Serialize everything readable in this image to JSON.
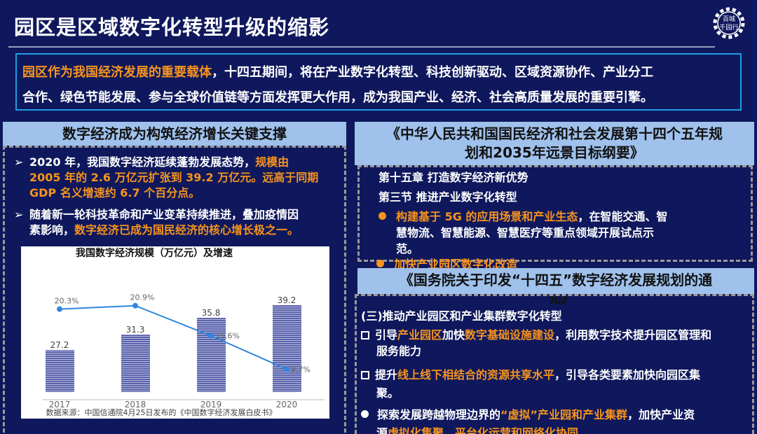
{
  "title": "园区是区域数字化转型升级的缩影",
  "logo": {
    "text1": "百城",
    "text2": "千园行"
  },
  "intro": {
    "highlight": "园区作为我国经济发展的重要载体",
    "line1_rest": "，十四五期间，将在产业数字化转型、科技创新驱动、区域资源协作、产业分工",
    "line2": "合作、绿色节能发展、参与全球价值链等方面发挥更大作用，成为我国产业、经济、社会高质量发展的重要引擎。"
  },
  "left": {
    "header": "数字经济成为构筑经济增长关键支撑",
    "bullet1": {
      "a": " 2020 年，我国数字经济延续蓬勃发展态势，",
      "b": "规模由",
      "c": "2005 年的 2.6 万亿元扩张到 39.2 万亿元。远高于同期",
      "d": "GDP 名义增速约 6.7 个百分点。"
    },
    "bullet2": {
      "a": "随着新一轮科技革命和产业变革持续推进，叠加疫情因",
      "b": "素影响，",
      "c": "数字经济已成为国民经济的核心增长极之一。"
    }
  },
  "chart_data": {
    "type": "bar",
    "title": "我国数字经济规模（万亿元）及增速",
    "categories": [
      "2017",
      "2018",
      "2019",
      "2020"
    ],
    "series": [
      {
        "type": "bar",
        "values": [
          27.2,
          31.3,
          35.8,
          39.2
        ],
        "labels": [
          "27.2",
          "31.3",
          "35.8",
          "39.2"
        ],
        "color": "#5a62aa"
      },
      {
        "type": "line",
        "values": [
          20.3,
          20.9,
          15.6,
          9.7
        ],
        "labels": [
          "20.3%",
          "20.9%",
          "15.6%",
          "9.7%"
        ],
        "color": "#2f86dd"
      }
    ],
    "source": "数据来源：中国信通院4月25日发布的《中国数字经济发展白皮书》"
  },
  "right1": {
    "header_l1": "《中华人民共和国国民经济和社会发展第十四个五年规",
    "header_l2": "划和2035年远景目标纲要》",
    "chapter": "第十五章 打造数字经济新优势",
    "section": "第三节 推进产业数字化转型",
    "item1_hl": "构建基于 5G 的应用场景和产业生态",
    "item1_rest1": "，在智能交通、智",
    "item1_rest2": "慧物流、智慧能源、智慧医疗等重点领域开展试点示",
    "item1_rest3": "范。",
    "item2": "加快产业园区数字化改造"
  },
  "right2": {
    "header_l1": "《国务院关于印发“十四五”数字经济发展规划的通",
    "header_l2": "知》",
    "heading": "(三)推动产业园区和产业集群数字化转型",
    "p1": {
      "a": "引导",
      "b": "产业园区",
      "c": "加快",
      "d": "数字基础设施建设",
      "e": "，利用数字技术提升园区管理和",
      "f": "服务能力"
    },
    "p2": {
      "a": "提升",
      "b": "线上线下相结合的资源共享水平",
      "c": "，引导各类要素加快向园区集",
      "d": "聚。"
    },
    "p3": {
      "a": "探索发展跨越物理边界的",
      "b": "“虚拟”产业园和产业集群",
      "c": "，加快产业资",
      "d": "源",
      "e": "虚拟化集聚、平台化运营和网络化协同"
    }
  },
  "colors": {
    "background": "#0f185c",
    "accent": "#f7941d",
    "header": "#9fc1ec",
    "intro_border": "#1e9ee0"
  }
}
